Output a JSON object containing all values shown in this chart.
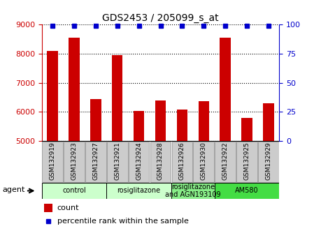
{
  "title": "GDS2453 / 205099_s_at",
  "samples": [
    "GSM132919",
    "GSM132923",
    "GSM132927",
    "GSM132921",
    "GSM132924",
    "GSM132928",
    "GSM132926",
    "GSM132930",
    "GSM132922",
    "GSM132925",
    "GSM132929"
  ],
  "counts": [
    8100,
    8550,
    6430,
    7950,
    6020,
    6400,
    6080,
    6360,
    8550,
    5800,
    6300
  ],
  "percentile": [
    99,
    99,
    99,
    99,
    99,
    99,
    99,
    99,
    99,
    99,
    99
  ],
  "ylim_left": [
    5000,
    9000
  ],
  "ylim_right": [
    0,
    100
  ],
  "yticks_left": [
    5000,
    6000,
    7000,
    8000,
    9000
  ],
  "yticks_right": [
    0,
    25,
    50,
    75,
    100
  ],
  "bar_color": "#cc0000",
  "dot_color": "#0000cc",
  "bar_width": 0.5,
  "agent_groups": [
    {
      "label": "control",
      "start": 0,
      "end": 3,
      "color": "#ccffcc"
    },
    {
      "label": "rosiglitazone",
      "start": 3,
      "end": 6,
      "color": "#ccffcc"
    },
    {
      "label": "rosiglitazone\nand AGN193109",
      "start": 6,
      "end": 8,
      "color": "#88ee88"
    },
    {
      "label": "AM580",
      "start": 8,
      "end": 11,
      "color": "#44dd44"
    }
  ],
  "legend_count_label": "count",
  "legend_pct_label": "percentile rank within the sample",
  "agent_label": "agent",
  "background_color": "#ffffff",
  "tick_box_color": "#cccccc",
  "left_axis_color": "#cc0000",
  "right_axis_color": "#0000cc"
}
